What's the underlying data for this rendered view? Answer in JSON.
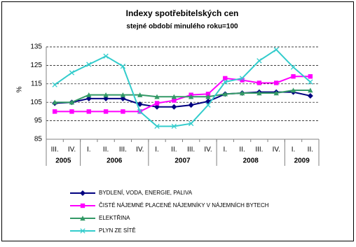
{
  "chart_data": {
    "type": "line",
    "title": "Indexy spotřebitelských cen",
    "subtitle": "stejné období minulého roku=100",
    "y_label": "%",
    "categories": [
      "III.",
      "IV.",
      "I.",
      "II.",
      "III.",
      "IV.",
      "I.",
      "II.",
      "III.",
      "IV.",
      "I.",
      "II.",
      "III.",
      "IV.",
      "I.",
      "II."
    ],
    "years": [
      "2005",
      "2006",
      "2007",
      "2008",
      "2009"
    ],
    "ylim": [
      85,
      135
    ],
    "yticks": [
      85,
      95,
      105,
      115,
      125,
      135
    ],
    "grid": true,
    "series": [
      {
        "name": "BYDLENÍ, VODA, ENERGIE, PALIVA",
        "color": "#000080",
        "marker": "diamond",
        "values": [
          104.5,
          105,
          107,
          107,
          107,
          104,
          102.5,
          102.5,
          103.5,
          105.5,
          109.5,
          110,
          110.5,
          110.5,
          110.5,
          108.5
        ]
      },
      {
        "name": "ČISTÉ NÁJEMNÉ PLACENÉ NÁJEMNÍKY V NÁJEMNÍCH BYTECH",
        "color": "#ff00ff",
        "marker": "square",
        "values": [
          100,
          100,
          100,
          100,
          100,
          100,
          104.5,
          106,
          109,
          109.5,
          118,
          117,
          115.5,
          115.5,
          119,
          119
        ]
      },
      {
        "name": "ELEKTŘINA",
        "color": "#339966",
        "marker": "triangle",
        "values": [
          105,
          105,
          109,
          109,
          109,
          109,
          108,
          108,
          108,
          108,
          109.5,
          110,
          110,
          110,
          111.5,
          111.5
        ]
      },
      {
        "name": "PLYN ZE SÍTĚ",
        "color": "#33cccc",
        "marker": "x",
        "values": [
          114.5,
          121,
          125.5,
          130,
          124.5,
          100,
          92,
          92,
          93.5,
          103.5,
          116,
          118,
          127.5,
          133.5,
          124,
          116
        ]
      }
    ]
  }
}
